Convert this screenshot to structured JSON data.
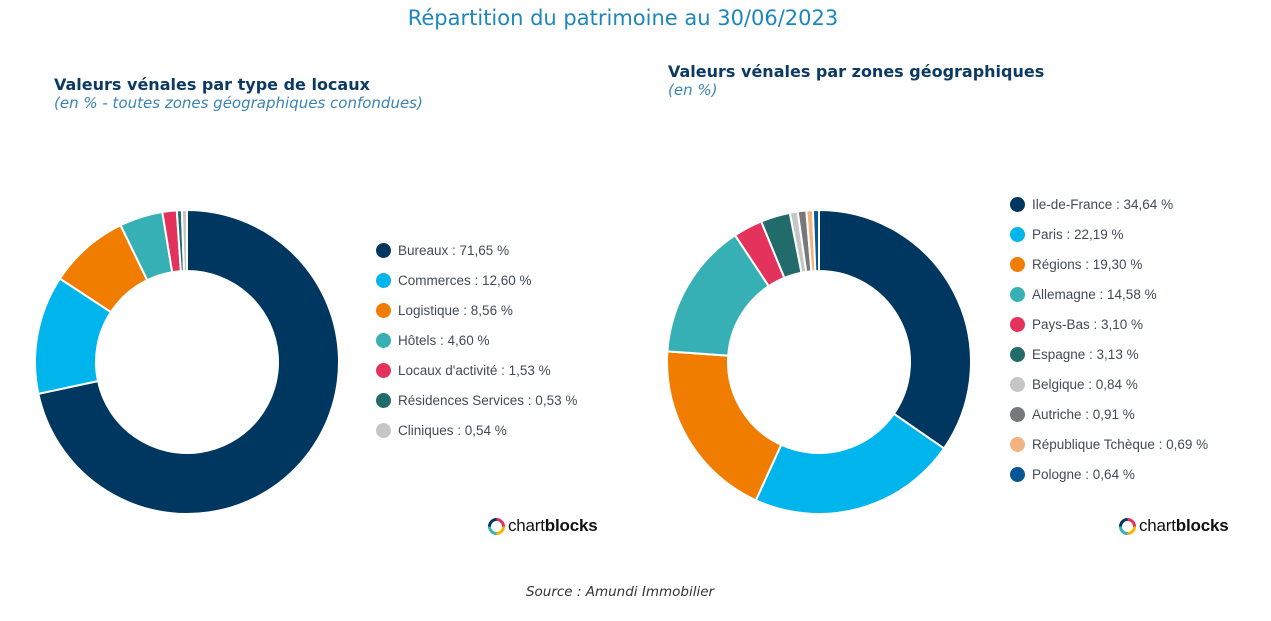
{
  "page": {
    "title": "Répartition du patrimoine au 30/06/2023",
    "source": "Source : Amundi Immobilier"
  },
  "panels": [
    {
      "title": "Valeurs vénales par type de locaux",
      "subtitle": "(en % - toutes zones géographiques confondues)",
      "legend": [
        "Bureaux : 71,65 %",
        "Commerces : 12,60 %",
        "Logistique : 8,56 %",
        "Hôtels : 4,60 %",
        "Locaux d'activité : 1,53 %",
        "Résidences Services : 0,53 %",
        "Cliniques : 0,54 %"
      ],
      "brand": {
        "part1": "chart",
        "part2": "blocks"
      }
    },
    {
      "title": "Valeurs vénales par zones géographiques",
      "subtitle": "(en %)",
      "legend": [
        "Ile-de-France : 34,64 %",
        "Paris : 22,19 %",
        "Régions : 19,30 %",
        "Allemagne : 14,58 %",
        "Pays-Bas : 3,10 %",
        "Espagne : 3,13 %",
        "Belgique : 0,84 %",
        "Autriche : 0,91 %",
        "République Tchèque : 0,69 %",
        "Pologne : 0,64 %"
      ],
      "brand": {
        "part1": "chart",
        "part2": "blocks"
      }
    }
  ],
  "chart_data": [
    {
      "type": "pie",
      "title": "Valeurs vénales par type de locaux",
      "subtitle": "(en % - toutes zones géographiques confondues)",
      "labels": [
        "Bureaux",
        "Commerces",
        "Logistique",
        "Hôtels",
        "Locaux d'activité",
        "Résidences Services",
        "Cliniques"
      ],
      "values": [
        71.65,
        12.6,
        8.56,
        4.6,
        1.53,
        0.53,
        0.54
      ],
      "colors": [
        "#003761",
        "#00b4ec",
        "#f07d00",
        "#36b0b4",
        "#e3325c",
        "#226b6b",
        "#c6c6c6"
      ],
      "legend_position": "right"
    },
    {
      "type": "pie",
      "title": "Valeurs vénales par zones géographiques",
      "subtitle": "(en %)",
      "labels": [
        "Ile-de-France",
        "Paris",
        "Régions",
        "Allemagne",
        "Pays-Bas",
        "Espagne",
        "Belgique",
        "Autriche",
        "République Tchèque",
        "Pologne"
      ],
      "values": [
        34.64,
        22.19,
        19.3,
        14.58,
        3.1,
        3.13,
        0.84,
        0.91,
        0.69,
        0.64
      ],
      "colors": [
        "#003761",
        "#00b4ec",
        "#f07d00",
        "#36b0b4",
        "#e3325c",
        "#226b6b",
        "#c6c6c6",
        "#76787b",
        "#f2b382",
        "#075694"
      ],
      "legend_position": "right"
    }
  ]
}
